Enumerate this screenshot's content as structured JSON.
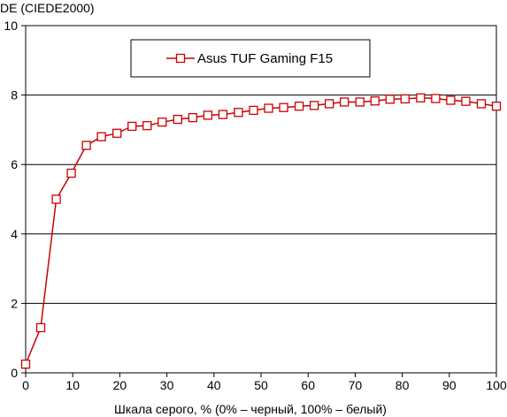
{
  "chart_data": {
    "type": "line",
    "ylabel": "DE (CIEDE2000)",
    "xlabel": "Шкала серого, % (0% – черный, 100% – белый)",
    "xlim": [
      0,
      100
    ],
    "ylim": [
      0,
      10
    ],
    "x_ticks": [
      0,
      10,
      20,
      30,
      40,
      50,
      60,
      70,
      80,
      90,
      100
    ],
    "y_ticks": [
      0,
      2,
      4,
      6,
      8,
      10
    ],
    "grid": "horizontal",
    "legend_position": "top-center",
    "series": [
      {
        "name": "Asus TUF Gaming F15",
        "color": "#cc0000",
        "marker": "open-square",
        "x": [
          0,
          3.2,
          6.5,
          9.7,
          12.9,
          16.1,
          19.4,
          22.6,
          25.8,
          29.0,
          32.3,
          35.5,
          38.7,
          41.9,
          45.2,
          48.4,
          51.6,
          54.8,
          58.1,
          61.3,
          64.5,
          67.7,
          71.0,
          74.2,
          77.4,
          80.6,
          83.9,
          87.1,
          90.3,
          93.5,
          96.8,
          100
        ],
        "y": [
          0.25,
          1.3,
          5.0,
          5.75,
          6.55,
          6.8,
          6.9,
          7.1,
          7.12,
          7.22,
          7.3,
          7.35,
          7.42,
          7.44,
          7.5,
          7.56,
          7.62,
          7.64,
          7.68,
          7.7,
          7.75,
          7.8,
          7.8,
          7.83,
          7.88,
          7.89,
          7.92,
          7.9,
          7.85,
          7.82,
          7.75,
          7.68
        ]
      }
    ]
  }
}
